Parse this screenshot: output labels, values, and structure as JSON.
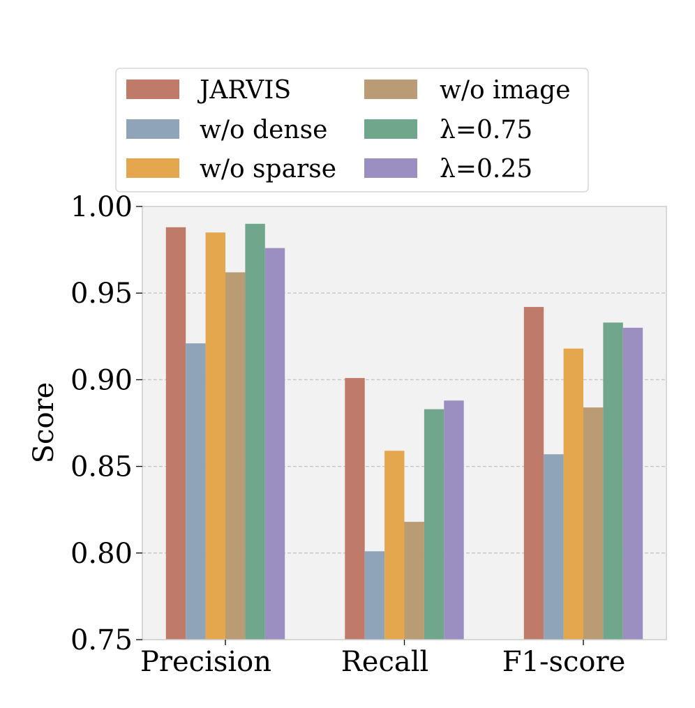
{
  "chart_data": {
    "type": "bar",
    "title": "",
    "xlabel": "",
    "ylabel": "Score",
    "categories": [
      "Precision",
      "Recall",
      "F1-score"
    ],
    "ylim": [
      0.75,
      1.0
    ],
    "yticks": [
      "0.75",
      "0.80",
      "0.85",
      "0.90",
      "0.95",
      "1.00"
    ],
    "ytick_values": [
      0.75,
      0.8,
      0.85,
      0.9,
      0.95,
      1.0
    ],
    "grid": true,
    "legend_position": "top",
    "series": [
      {
        "name": "JARVIS",
        "color": "#c07a6a",
        "values": [
          0.988,
          0.901,
          0.942
        ]
      },
      {
        "name": "w/o dense",
        "color": "#8fa4b9",
        "values": [
          0.921,
          0.801,
          0.857
        ]
      },
      {
        "name": "w/o sparse",
        "color": "#e4a74e",
        "values": [
          0.985,
          0.859,
          0.918
        ]
      },
      {
        "name": "w/o image",
        "color": "#b99b74",
        "values": [
          0.962,
          0.818,
          0.884
        ]
      },
      {
        "name": "λ=0.75",
        "color": "#6fa68c",
        "values": [
          0.99,
          0.883,
          0.933
        ]
      },
      {
        "name": "λ=0.25",
        "color": "#9b8fc1",
        "values": [
          0.976,
          0.888,
          0.93
        ]
      }
    ]
  }
}
